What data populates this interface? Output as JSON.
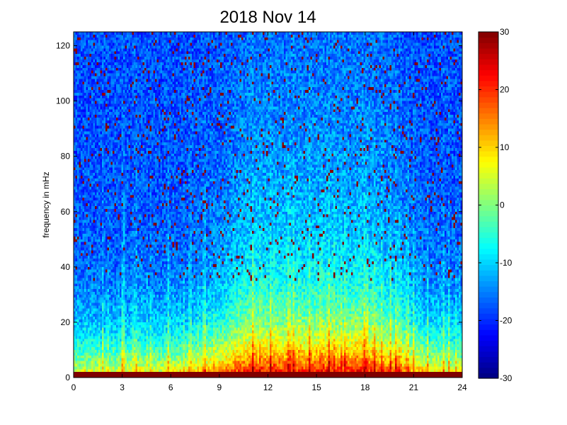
{
  "chart_data": {
    "type": "heatmap",
    "title": "2018 Nov 14",
    "xlabel": "",
    "ylabel": "frequency in mHz",
    "xlim": [
      0,
      24
    ],
    "ylim": [
      0,
      125
    ],
    "xticks": [
      0,
      3,
      6,
      9,
      12,
      15,
      18,
      21,
      24
    ],
    "yticks": [
      0,
      20,
      40,
      60,
      80,
      100,
      120
    ],
    "colorbar": {
      "colormap": "jet",
      "range": [
        -30,
        30
      ],
      "ticks": [
        30,
        20,
        10,
        0,
        -10,
        -20,
        -30
      ]
    },
    "grid": false,
    "description_values": {
      "time_bins": 220,
      "freq_bins": 125,
      "low_band_power_peak_hours": [
        11,
        14.5,
        18.5
      ],
      "high_freq_background_level": -18,
      "low_freq_level_range": [
        5,
        25
      ]
    }
  }
}
